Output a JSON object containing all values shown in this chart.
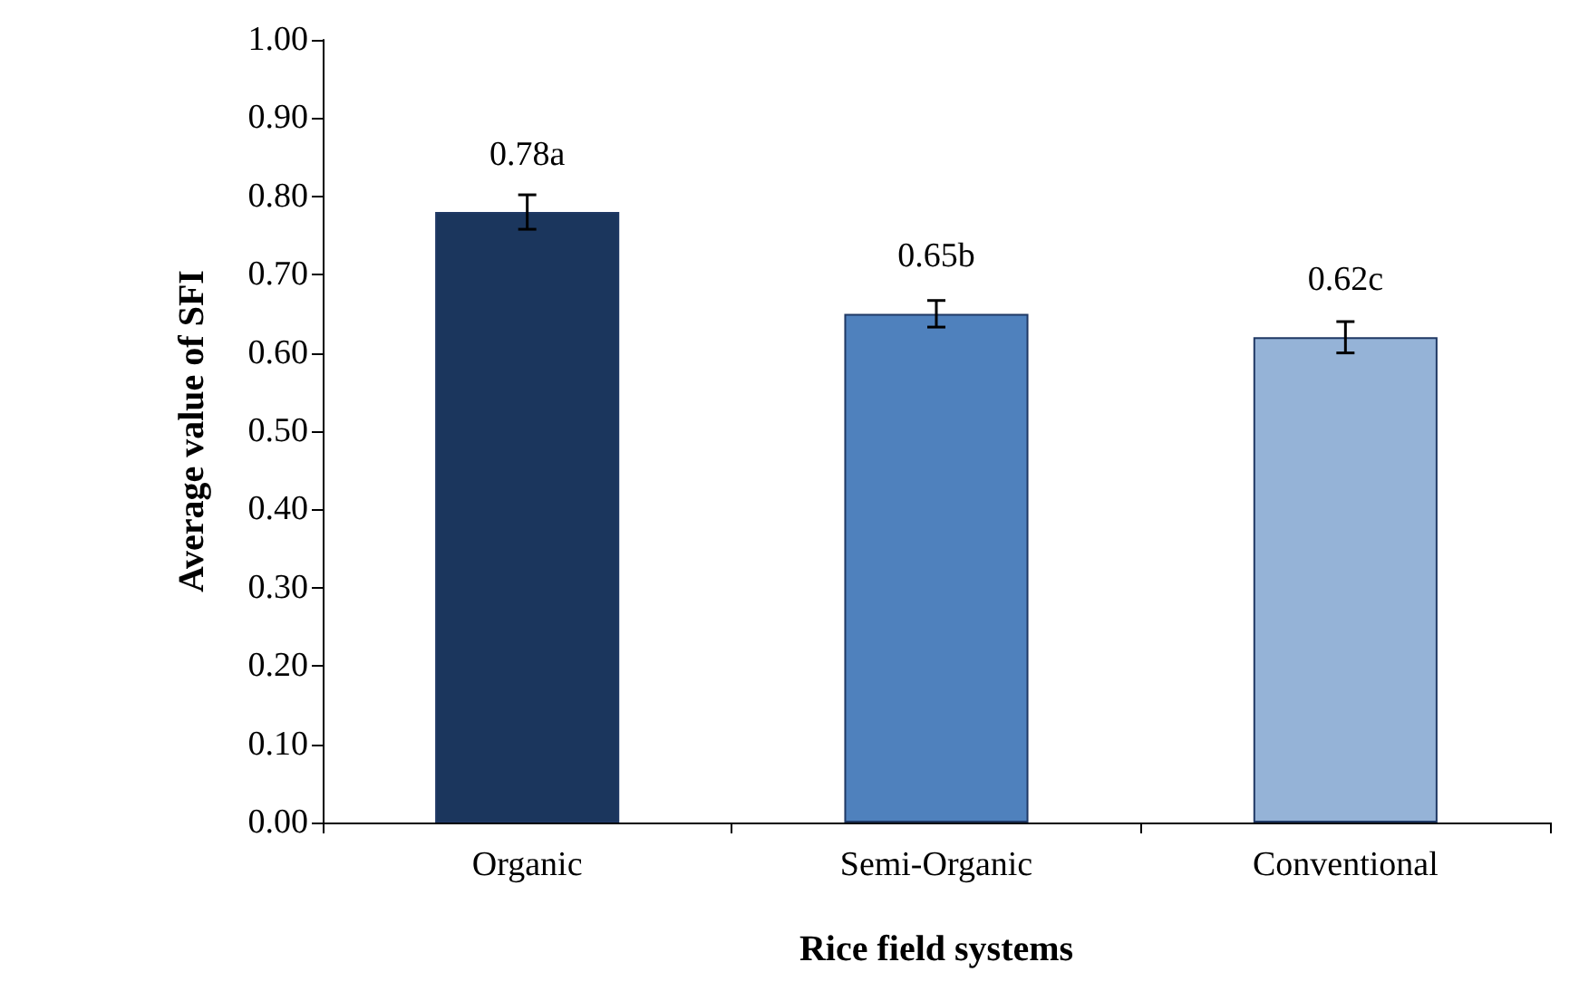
{
  "chart_data": {
    "type": "bar",
    "xlabel": "Rice field systems",
    "ylabel": "Average value of SFI",
    "categories": [
      "Organic",
      "Semi-Organic",
      "Conventional"
    ],
    "values": [
      0.78,
      0.65,
      0.62
    ],
    "colors": [
      "#1b365d",
      "#4f81bd",
      "#95b3d7"
    ],
    "errors": [
      0.022,
      0.017,
      0.02
    ],
    "value_labels": [
      "0.78a",
      "0.65b",
      "0.62c"
    ],
    "ylim": [
      0,
      1
    ],
    "yticks": [
      {
        "value": 0,
        "label": "0.00"
      },
      {
        "value": 0.1,
        "label": "0.10"
      },
      {
        "value": 0.2,
        "label": "0.20"
      },
      {
        "value": 0.3,
        "label": "0.30"
      },
      {
        "value": 0.4,
        "label": "0.40"
      },
      {
        "value": 0.5,
        "label": "0.50"
      },
      {
        "value": 0.6,
        "label": "0.60"
      },
      {
        "value": 0.7,
        "label": "0.70"
      },
      {
        "value": 0.8,
        "label": "0.80"
      },
      {
        "value": 0.9,
        "label": "0.90"
      },
      {
        "value": 1,
        "label": "1.00"
      }
    ],
    "grid": false
  }
}
